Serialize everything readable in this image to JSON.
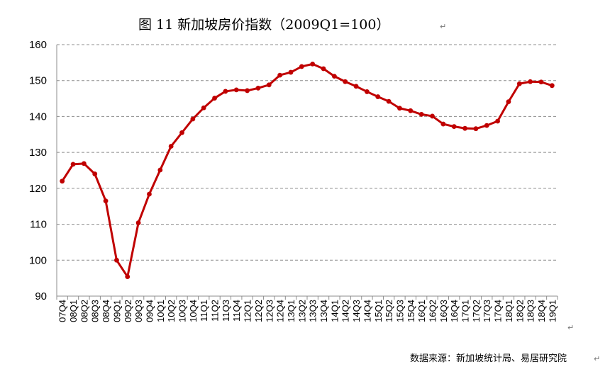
{
  "chart_data": {
    "type": "line",
    "title": "图 11   新加坡房价指数（2009Q1=100）",
    "source": "数据来源：新加坡统计局、易居研究院",
    "xlabel": "",
    "ylabel": "",
    "ylim": [
      90,
      160
    ],
    "yticks": [
      "90",
      "100",
      "110",
      "120",
      "130",
      "140",
      "150",
      "160"
    ],
    "grid": true,
    "gridStyle": "dashed-horizontal",
    "legend": "none",
    "line_color": "#c00000",
    "categories": [
      "07Q4",
      "08Q1",
      "08Q2",
      "08Q3",
      "08Q4",
      "09Q1",
      "09Q2",
      "09Q3",
      "09Q4",
      "10Q1",
      "10Q2",
      "10Q3",
      "10Q4",
      "11Q1",
      "11Q2",
      "11Q3",
      "11Q4",
      "12Q1",
      "12Q2",
      "12Q3",
      "12Q4",
      "13Q1",
      "13Q2",
      "13Q3",
      "13Q4",
      "14Q1",
      "14Q2",
      "14Q3",
      "14Q4",
      "15Q1",
      "15Q2",
      "15Q3",
      "15Q4",
      "16Q1",
      "16Q2",
      "16Q3",
      "16Q4",
      "17Q1",
      "17Q2",
      "17Q3",
      "17Q4",
      "18Q1",
      "18Q2",
      "18Q3",
      "18Q4",
      "19Q1"
    ],
    "series": [
      {
        "values": [
          122.0,
          126.7,
          126.9,
          124.0,
          116.5,
          100.0,
          95.4,
          110.4,
          118.4,
          125.1,
          131.7,
          135.5,
          139.3,
          142.4,
          145.1,
          147.0,
          147.4,
          147.2,
          147.9,
          148.8,
          151.5,
          152.3,
          153.9,
          154.6,
          153.3,
          151.2,
          149.7,
          148.4,
          146.9,
          145.5,
          144.2,
          142.3,
          141.6,
          140.6,
          140.1,
          137.9,
          137.2,
          136.7,
          136.6,
          137.5,
          138.7,
          144.1,
          149.1,
          149.7,
          149.6,
          148.6
        ]
      }
    ]
  }
}
